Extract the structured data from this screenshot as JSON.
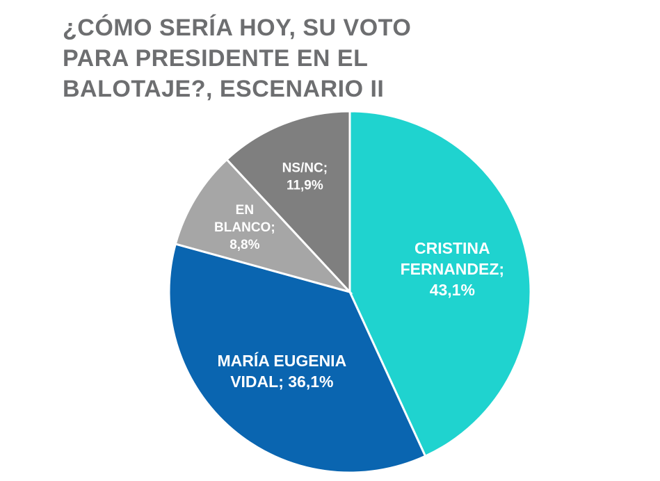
{
  "chart_data": {
    "type": "pie",
    "title": "¿CÓMO SERÍA HOY, SU VOTO PARA PRESIDENTE EN EL BALOTAJE?, ESCENARIO II",
    "categories": [
      "CRISTINA FERNANDEZ;",
      "MARÍA EUGENIA VIDAL;",
      "EN BLANCO;",
      "NS/NC;"
    ],
    "values": [
      43.1,
      36.1,
      8.8,
      11.9
    ],
    "value_labels": [
      "43,1%",
      "36,1%",
      "8,8%",
      "11,9%"
    ],
    "colors": [
      "#1fd3cf",
      "#0a65b0",
      "#a6a6a6",
      "#7f7f7f"
    ]
  }
}
